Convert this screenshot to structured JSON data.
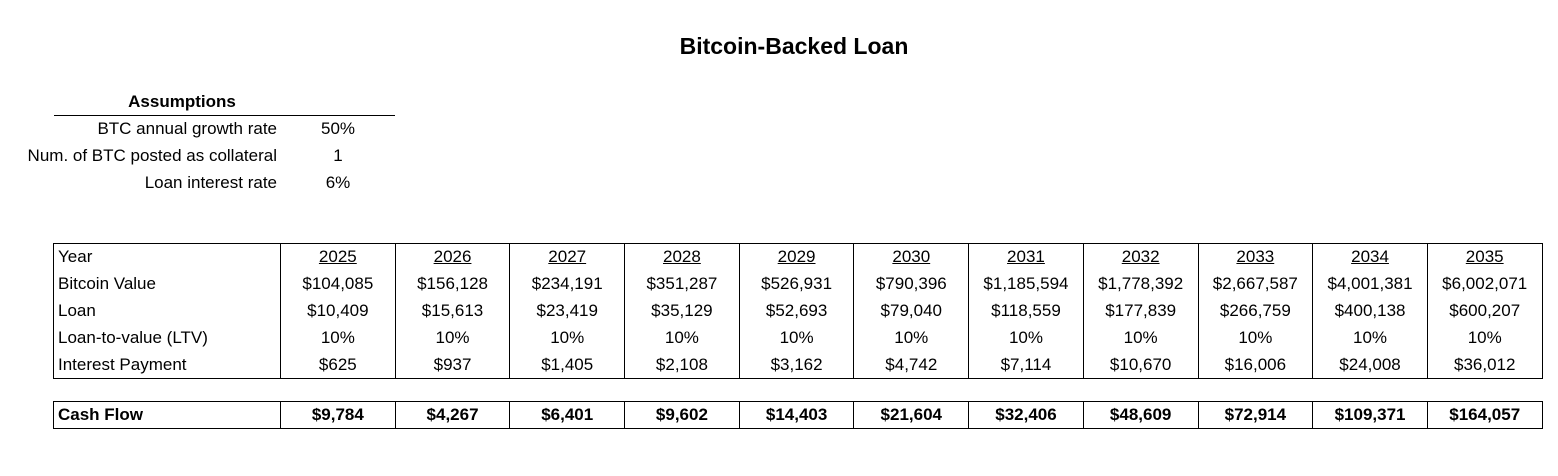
{
  "title": "Bitcoin-Backed Loan",
  "assumptions": {
    "heading": "Assumptions",
    "rows": [
      {
        "label": "BTC annual growth rate",
        "value": "50%"
      },
      {
        "label": "Num. of BTC posted as collateral",
        "value": "1"
      },
      {
        "label": "Loan interest rate",
        "value": "6%"
      }
    ]
  },
  "table": {
    "year_label": "Year",
    "years": [
      "2025",
      "2026",
      "2027",
      "2028",
      "2029",
      "2030",
      "2031",
      "2032",
      "2033",
      "2034",
      "2035"
    ],
    "rows": [
      {
        "label": "Bitcoin Value",
        "values": [
          "$104,085",
          "$156,128",
          "$234,191",
          "$351,287",
          "$526,931",
          "$790,396",
          "$1,185,594",
          "$1,778,392",
          "$2,667,587",
          "$4,001,381",
          "$6,002,071"
        ]
      },
      {
        "label": "Loan",
        "values": [
          "$10,409",
          "$15,613",
          "$23,419",
          "$35,129",
          "$52,693",
          "$79,040",
          "$118,559",
          "$177,839",
          "$266,759",
          "$400,138",
          "$600,207"
        ]
      },
      {
        "label": "Loan-to-value (LTV)",
        "values": [
          "10%",
          "10%",
          "10%",
          "10%",
          "10%",
          "10%",
          "10%",
          "10%",
          "10%",
          "10%",
          "10%"
        ]
      },
      {
        "label": "Interest Payment",
        "values": [
          "$625",
          "$937",
          "$1,405",
          "$2,108",
          "$3,162",
          "$4,742",
          "$7,114",
          "$10,670",
          "$16,006",
          "$24,008",
          "$36,012"
        ]
      }
    ]
  },
  "cash_flow": {
    "label": "Cash Flow",
    "values": [
      "$9,784",
      "$4,267",
      "$6,401",
      "$9,602",
      "$14,403",
      "$21,604",
      "$32,406",
      "$48,609",
      "$72,914",
      "$109,371",
      "$164,057"
    ]
  }
}
